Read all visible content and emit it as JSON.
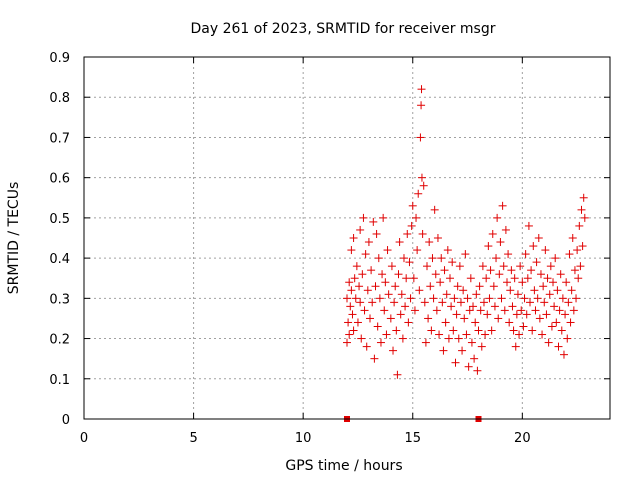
{
  "chart_data": {
    "type": "scatter",
    "title": "Day 261 of 2023, SRMTID for receiver msgr",
    "xlabel": "GPS time / hours",
    "ylabel": "SRMTID / TECUs",
    "xlim": [
      0,
      24
    ],
    "ylim": [
      0,
      0.9
    ],
    "xticks": [
      0,
      5,
      10,
      15,
      20
    ],
    "yticks": [
      0,
      0.1,
      0.2,
      0.3,
      0.4,
      0.5,
      0.6,
      0.7,
      0.8,
      0.9
    ],
    "ytick_labels": [
      "0",
      "0.1",
      "0.2",
      "0.3",
      "0.4",
      "0.5",
      "0.6",
      "0.7",
      "0.8",
      "0.9"
    ],
    "grid": true,
    "marker": "+",
    "color": "#e00000",
    "series": [
      {
        "marker": "+",
        "points": [
          [
            12.0,
            0.19
          ],
          [
            12.0,
            0.3
          ],
          [
            12.05,
            0.24
          ],
          [
            12.1,
            0.34
          ],
          [
            12.1,
            0.21
          ],
          [
            12.15,
            0.28
          ],
          [
            12.2,
            0.42
          ],
          [
            12.2,
            0.32
          ],
          [
            12.25,
            0.26
          ],
          [
            12.3,
            0.45
          ],
          [
            12.3,
            0.22
          ],
          [
            12.35,
            0.35
          ],
          [
            12.4,
            0.3
          ],
          [
            12.45,
            0.38
          ],
          [
            12.5,
            0.24
          ],
          [
            12.55,
            0.33
          ],
          [
            12.6,
            0.47
          ],
          [
            12.6,
            0.29
          ],
          [
            12.65,
            0.2
          ],
          [
            12.7,
            0.36
          ],
          [
            12.75,
            0.5
          ],
          [
            12.8,
            0.27
          ],
          [
            12.85,
            0.41
          ],
          [
            12.9,
            0.18
          ],
          [
            12.95,
            0.32
          ],
          [
            13.0,
            0.44
          ],
          [
            13.05,
            0.25
          ],
          [
            13.1,
            0.37
          ],
          [
            13.15,
            0.29
          ],
          [
            13.2,
            0.49
          ],
          [
            13.25,
            0.15
          ],
          [
            13.3,
            0.33
          ],
          [
            13.35,
            0.46
          ],
          [
            13.4,
            0.23
          ],
          [
            13.45,
            0.4
          ],
          [
            13.5,
            0.3
          ],
          [
            13.55,
            0.19
          ],
          [
            13.6,
            0.36
          ],
          [
            13.65,
            0.5
          ],
          [
            13.7,
            0.27
          ],
          [
            13.75,
            0.34
          ],
          [
            13.8,
            0.21
          ],
          [
            13.85,
            0.42
          ],
          [
            13.9,
            0.31
          ],
          [
            14.0,
            0.25
          ],
          [
            14.05,
            0.38
          ],
          [
            14.1,
            0.17
          ],
          [
            14.15,
            0.29
          ],
          [
            14.2,
            0.33
          ],
          [
            14.25,
            0.22
          ],
          [
            14.3,
            0.11
          ],
          [
            14.35,
            0.36
          ],
          [
            14.4,
            0.44
          ],
          [
            14.45,
            0.26
          ],
          [
            14.5,
            0.31
          ],
          [
            14.55,
            0.2
          ],
          [
            14.6,
            0.4
          ],
          [
            14.65,
            0.28
          ],
          [
            14.7,
            0.35
          ],
          [
            14.75,
            0.46
          ],
          [
            14.8,
            0.24
          ],
          [
            14.85,
            0.39
          ],
          [
            14.9,
            0.3
          ],
          [
            14.95,
            0.48
          ],
          [
            15.0,
            0.53
          ],
          [
            15.05,
            0.35
          ],
          [
            15.1,
            0.27
          ],
          [
            15.15,
            0.5
          ],
          [
            15.2,
            0.42
          ],
          [
            15.25,
            0.56
          ],
          [
            15.3,
            0.32
          ],
          [
            15.35,
            0.7
          ],
          [
            15.38,
            0.78
          ],
          [
            15.4,
            0.82
          ],
          [
            15.42,
            0.6
          ],
          [
            15.45,
            0.46
          ],
          [
            15.5,
            0.58
          ],
          [
            15.55,
            0.29
          ],
          [
            15.6,
            0.19
          ],
          [
            15.65,
            0.38
          ],
          [
            15.7,
            0.25
          ],
          [
            15.75,
            0.44
          ],
          [
            15.8,
            0.33
          ],
          [
            15.85,
            0.22
          ],
          [
            15.9,
            0.4
          ],
          [
            15.95,
            0.3
          ],
          [
            16.0,
            0.52
          ],
          [
            16.05,
            0.36
          ],
          [
            16.1,
            0.27
          ],
          [
            16.15,
            0.45
          ],
          [
            16.2,
            0.21
          ],
          [
            16.25,
            0.34
          ],
          [
            16.3,
            0.4
          ],
          [
            16.35,
            0.29
          ],
          [
            16.4,
            0.17
          ],
          [
            16.45,
            0.37
          ],
          [
            16.5,
            0.24
          ],
          [
            16.55,
            0.31
          ],
          [
            16.6,
            0.42
          ],
          [
            16.65,
            0.2
          ],
          [
            16.7,
            0.35
          ],
          [
            16.75,
            0.28
          ],
          [
            16.8,
            0.39
          ],
          [
            16.85,
            0.22
          ],
          [
            16.9,
            0.3
          ],
          [
            16.95,
            0.14
          ],
          [
            17.0,
            0.26
          ],
          [
            17.05,
            0.33
          ],
          [
            17.1,
            0.2
          ],
          [
            17.15,
            0.38
          ],
          [
            17.2,
            0.29
          ],
          [
            17.25,
            0.17
          ],
          [
            17.3,
            0.32
          ],
          [
            17.35,
            0.25
          ],
          [
            17.4,
            0.41
          ],
          [
            17.45,
            0.21
          ],
          [
            17.5,
            0.3
          ],
          [
            17.55,
            0.13
          ],
          [
            17.6,
            0.27
          ],
          [
            17.65,
            0.35
          ],
          [
            17.7,
            0.19
          ],
          [
            17.75,
            0.28
          ],
          [
            17.8,
            0.15
          ],
          [
            17.85,
            0.24
          ],
          [
            17.9,
            0.31
          ],
          [
            17.95,
            0.12
          ],
          [
            18.0,
            0.22
          ],
          [
            18.05,
            0.33
          ],
          [
            18.1,
            0.27
          ],
          [
            18.15,
            0.18
          ],
          [
            18.2,
            0.38
          ],
          [
            18.25,
            0.29
          ],
          [
            18.3,
            0.21
          ],
          [
            18.35,
            0.35
          ],
          [
            18.4,
            0.26
          ],
          [
            18.45,
            0.43
          ],
          [
            18.5,
            0.3
          ],
          [
            18.55,
            0.37
          ],
          [
            18.6,
            0.22
          ],
          [
            18.65,
            0.46
          ],
          [
            18.7,
            0.33
          ],
          [
            18.75,
            0.28
          ],
          [
            18.8,
            0.4
          ],
          [
            18.85,
            0.5
          ],
          [
            18.9,
            0.25
          ],
          [
            18.95,
            0.36
          ],
          [
            19.0,
            0.44
          ],
          [
            19.05,
            0.3
          ],
          [
            19.1,
            0.53
          ],
          [
            19.15,
            0.38
          ],
          [
            19.2,
            0.27
          ],
          [
            19.25,
            0.47
          ],
          [
            19.3,
            0.34
          ],
          [
            19.35,
            0.41
          ],
          [
            19.4,
            0.24
          ],
          [
            19.45,
            0.32
          ],
          [
            19.5,
            0.37
          ],
          [
            19.55,
            0.28
          ],
          [
            19.6,
            0.22
          ],
          [
            19.65,
            0.35
          ],
          [
            19.7,
            0.18
          ],
          [
            19.75,
            0.26
          ],
          [
            19.8,
            0.31
          ],
          [
            19.85,
            0.21
          ],
          [
            19.9,
            0.38
          ],
          [
            19.95,
            0.27
          ],
          [
            20.0,
            0.34
          ],
          [
            20.05,
            0.23
          ],
          [
            20.1,
            0.3
          ],
          [
            20.15,
            0.41
          ],
          [
            20.2,
            0.26
          ],
          [
            20.25,
            0.35
          ],
          [
            20.3,
            0.48
          ],
          [
            20.35,
            0.29
          ],
          [
            20.4,
            0.37
          ],
          [
            20.45,
            0.22
          ],
          [
            20.5,
            0.43
          ],
          [
            20.55,
            0.32
          ],
          [
            20.6,
            0.27
          ],
          [
            20.65,
            0.39
          ],
          [
            20.7,
            0.3
          ],
          [
            20.75,
            0.45
          ],
          [
            20.8,
            0.25
          ],
          [
            20.85,
            0.36
          ],
          [
            20.9,
            0.21
          ],
          [
            20.95,
            0.33
          ],
          [
            21.0,
            0.29
          ],
          [
            21.05,
            0.42
          ],
          [
            21.1,
            0.26
          ],
          [
            21.15,
            0.35
          ],
          [
            21.2,
            0.19
          ],
          [
            21.25,
            0.31
          ],
          [
            21.3,
            0.38
          ],
          [
            21.35,
            0.23
          ],
          [
            21.4,
            0.34
          ],
          [
            21.45,
            0.28
          ],
          [
            21.5,
            0.4
          ],
          [
            21.55,
            0.24
          ],
          [
            21.6,
            0.32
          ],
          [
            21.65,
            0.18
          ],
          [
            21.7,
            0.27
          ],
          [
            21.75,
            0.36
          ],
          [
            21.8,
            0.22
          ],
          [
            21.85,
            0.3
          ],
          [
            21.9,
            0.16
          ],
          [
            21.95,
            0.26
          ],
          [
            22.0,
            0.34
          ],
          [
            22.05,
            0.2
          ],
          [
            22.1,
            0.29
          ],
          [
            22.15,
            0.41
          ],
          [
            22.2,
            0.24
          ],
          [
            22.25,
            0.32
          ],
          [
            22.3,
            0.45
          ],
          [
            22.35,
            0.27
          ],
          [
            22.4,
            0.37
          ],
          [
            22.45,
            0.3
          ],
          [
            22.5,
            0.42
          ],
          [
            22.55,
            0.35
          ],
          [
            22.6,
            0.48
          ],
          [
            22.65,
            0.38
          ],
          [
            22.7,
            0.52
          ],
          [
            22.75,
            0.43
          ],
          [
            22.8,
            0.55
          ],
          [
            22.85,
            0.5
          ]
        ]
      }
    ],
    "markers_on_axis": [
      {
        "x": 12.0,
        "y": 0,
        "shape": "square"
      },
      {
        "x": 18.0,
        "y": 0,
        "shape": "square"
      }
    ]
  }
}
